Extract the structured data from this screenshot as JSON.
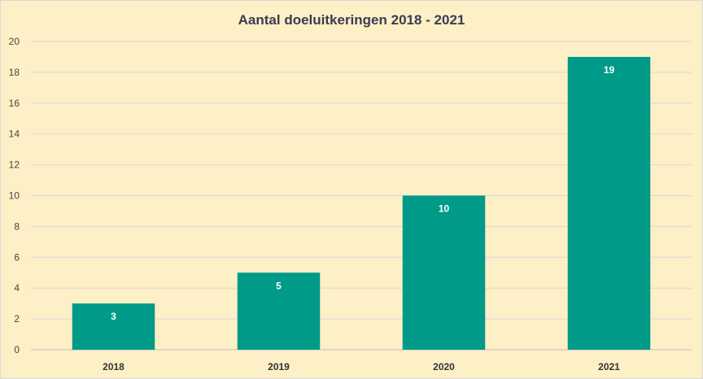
{
  "chart_data": {
    "type": "bar",
    "title": "Aantal doeluitkeringen 2018 - 2021",
    "categories": [
      "2018",
      "2019",
      "2020",
      "2021"
    ],
    "values": [
      3,
      5,
      10,
      19
    ],
    "ylim": [
      0,
      20
    ],
    "yticks": [
      0,
      2,
      4,
      6,
      8,
      10,
      12,
      14,
      16,
      18,
      20
    ],
    "grid": true,
    "legend": "none",
    "colors": {
      "bar": "#009a88",
      "background": "#fdefc6",
      "grid": "#d9d9d9",
      "axis": "#bfbfbf"
    }
  }
}
